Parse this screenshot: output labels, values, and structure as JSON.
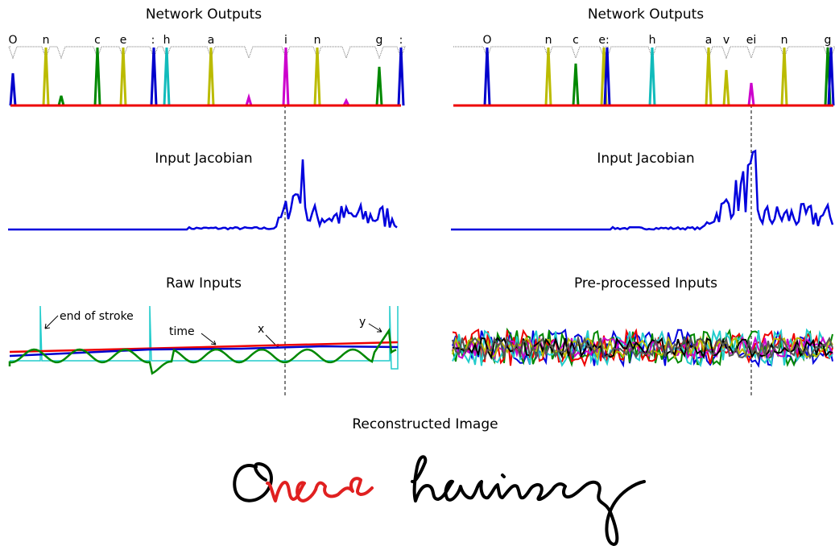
{
  "left": {
    "outputs_title": "Network Outputs",
    "output_labels": [
      "O",
      "n",
      "c",
      "e",
      ":",
      "h",
      "a",
      "i",
      "n",
      "g",
      ":"
    ],
    "jacobian_title": "Input Jacobian",
    "inputs_title": "Raw Inputs",
    "annotations": [
      "end of stroke",
      "time",
      "x",
      "y"
    ]
  },
  "right": {
    "outputs_title": "Network Outputs",
    "output_labels": [
      "O",
      "n",
      "c",
      "e:",
      "h",
      "a",
      "v",
      "ei",
      "n",
      "g"
    ],
    "jacobian_title": "Input Jacobian",
    "inputs_title": "Pre-processed Inputs"
  },
  "image_title": "Reconstructed Image"
}
